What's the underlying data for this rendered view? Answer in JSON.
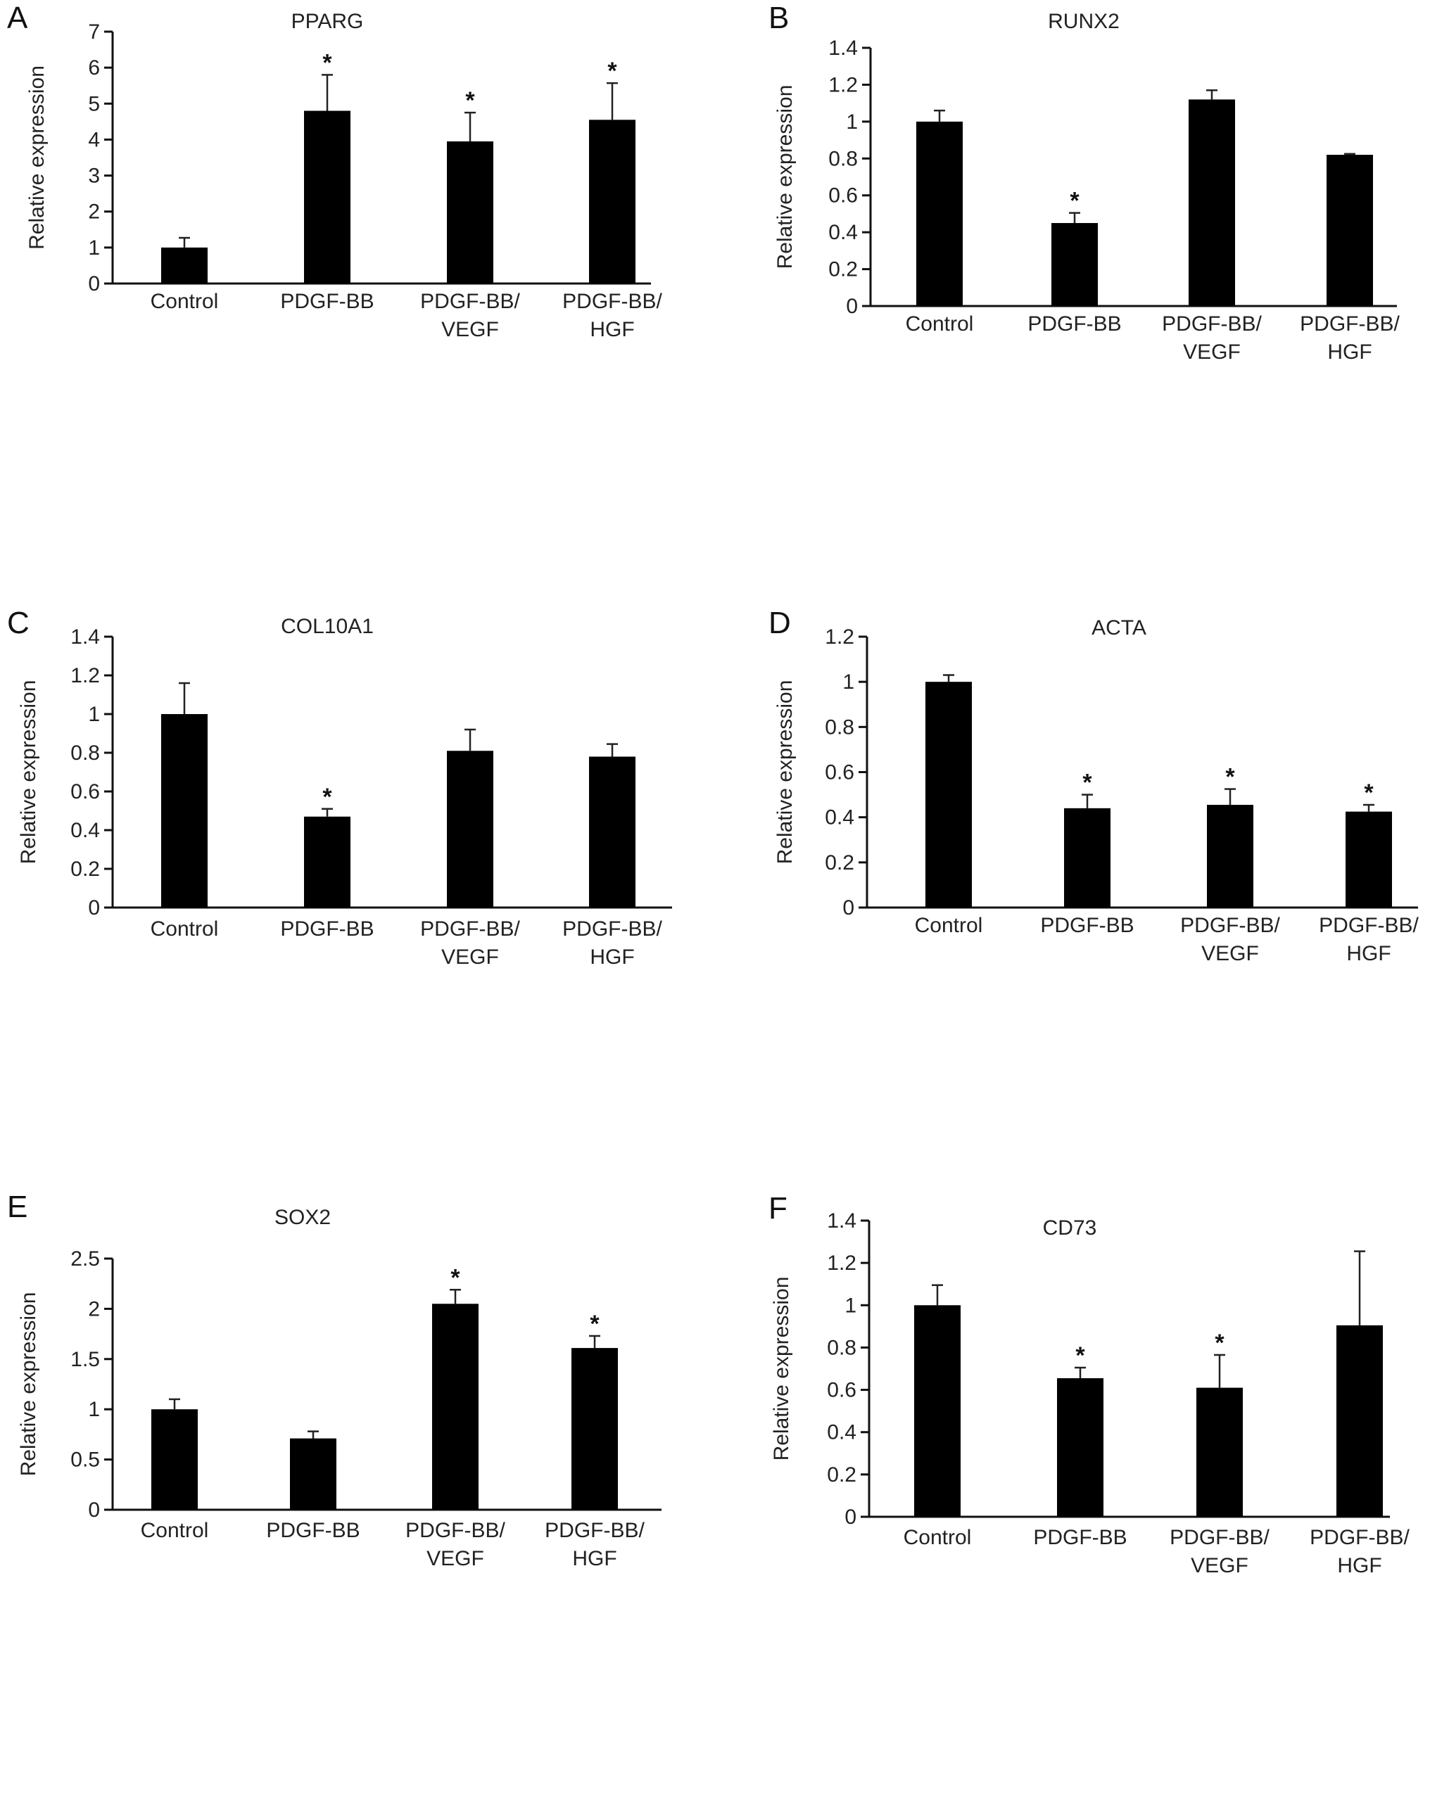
{
  "chart_data": [
    {
      "type": "bar",
      "panel": "A",
      "title": "PPARG",
      "ylabel": "Relative expression",
      "xlabel": "",
      "categories": [
        "Control",
        "PDGF-BB",
        "PDGF-BB/\nVEGF",
        "PDGF-BB/\nHGF"
      ],
      "values": [
        1.0,
        4.8,
        3.95,
        4.55
      ],
      "errors": [
        0.27,
        1.0,
        0.8,
        1.02
      ],
      "significant": [
        false,
        true,
        true,
        true
      ],
      "ylim": [
        0,
        7
      ],
      "yticks": [
        "0",
        "1",
        "2",
        "3",
        "4",
        "5",
        "6",
        "7"
      ],
      "ytick_values": [
        0,
        1,
        2,
        3,
        4,
        5,
        6,
        7
      ]
    },
    {
      "type": "bar",
      "panel": "B",
      "title": "RUNX2",
      "ylabel": "Relative expression",
      "xlabel": "",
      "categories": [
        "Control",
        "PDGF-BB",
        "PDGF-BB/\nVEGF",
        "PDGF-BB/\nHGF"
      ],
      "values": [
        1.0,
        0.45,
        1.12,
        0.82
      ],
      "errors": [
        0.06,
        0.055,
        0.05,
        0.005
      ],
      "significant": [
        false,
        true,
        false,
        false
      ],
      "ylim": [
        0,
        1.4
      ],
      "yticks": [
        "0",
        "0.2",
        "0.4",
        "0.6",
        "0.8",
        "1",
        "1.2",
        "1.4"
      ],
      "ytick_values": [
        0,
        0.2,
        0.4,
        0.6,
        0.8,
        1.0,
        1.2,
        1.4
      ]
    },
    {
      "type": "bar",
      "panel": "C",
      "title": "COL10A1",
      "ylabel": "Relative expression",
      "xlabel": "",
      "categories": [
        "Control",
        "PDGF-BB",
        "PDGF-BB/\nVEGF",
        "PDGF-BB/\nHGF"
      ],
      "values": [
        1.0,
        0.47,
        0.81,
        0.78
      ],
      "errors": [
        0.16,
        0.04,
        0.11,
        0.065
      ],
      "significant": [
        false,
        true,
        false,
        false
      ],
      "ylim": [
        0,
        1.4
      ],
      "yticks": [
        "0",
        "0.2",
        "0.4",
        "0.6",
        "0.8",
        "1",
        "1.2",
        "1.4"
      ],
      "ytick_values": [
        0,
        0.2,
        0.4,
        0.6,
        0.8,
        1.0,
        1.2,
        1.4
      ]
    },
    {
      "type": "bar",
      "panel": "D",
      "title": "ACTA",
      "ylabel": "Relative expression",
      "xlabel": "",
      "categories": [
        "Control",
        "PDGF-BB",
        "PDGF-BB/\nVEGF",
        "PDGF-BB/\nHGF"
      ],
      "values": [
        1.0,
        0.44,
        0.455,
        0.425
      ],
      "errors": [
        0.03,
        0.06,
        0.07,
        0.03
      ],
      "significant": [
        false,
        true,
        true,
        true
      ],
      "ylim": [
        0,
        1.2
      ],
      "yticks": [
        "0",
        "0.2",
        "0.4",
        "0.6",
        "0.8",
        "1",
        "1.2"
      ],
      "ytick_values": [
        0,
        0.2,
        0.4,
        0.6,
        0.8,
        1.0,
        1.2
      ]
    },
    {
      "type": "bar",
      "panel": "E",
      "title": "SOX2",
      "ylabel": "Relative expression",
      "xlabel": "",
      "categories": [
        "Control",
        "PDGF-BB",
        "PDGF-BB/\nVEGF",
        "PDGF-BB/\nHGF"
      ],
      "values": [
        1.0,
        0.71,
        2.05,
        1.61
      ],
      "errors": [
        0.1,
        0.07,
        0.14,
        0.12
      ],
      "significant": [
        false,
        false,
        true,
        true
      ],
      "ylim": [
        0,
        2.5
      ],
      "yticks": [
        "0",
        "0.5",
        "1",
        "1.5",
        "2",
        "2.5"
      ],
      "ytick_values": [
        0,
        0.5,
        1.0,
        1.5,
        2.0,
        2.5
      ]
    },
    {
      "type": "bar",
      "panel": "F",
      "title": "CD73",
      "ylabel": "Relative expression",
      "xlabel": "",
      "categories": [
        "Control",
        "PDGF-BB",
        "PDGF-BB/\nVEGF",
        "PDGF-BB/\nHGF"
      ],
      "values": [
        1.0,
        0.655,
        0.61,
        0.905
      ],
      "errors": [
        0.095,
        0.05,
        0.155,
        0.35
      ],
      "significant": [
        false,
        true,
        true,
        false
      ],
      "ylim": [
        0,
        1.4
      ],
      "yticks": [
        "0",
        "0.2",
        "0.4",
        "0.6",
        "0.8",
        "1",
        "1.2",
        "1.4"
      ],
      "ytick_values": [
        0,
        0.2,
        0.4,
        0.6,
        0.8,
        1.0,
        1.2,
        1.4
      ]
    }
  ],
  "significance_marker": "*"
}
